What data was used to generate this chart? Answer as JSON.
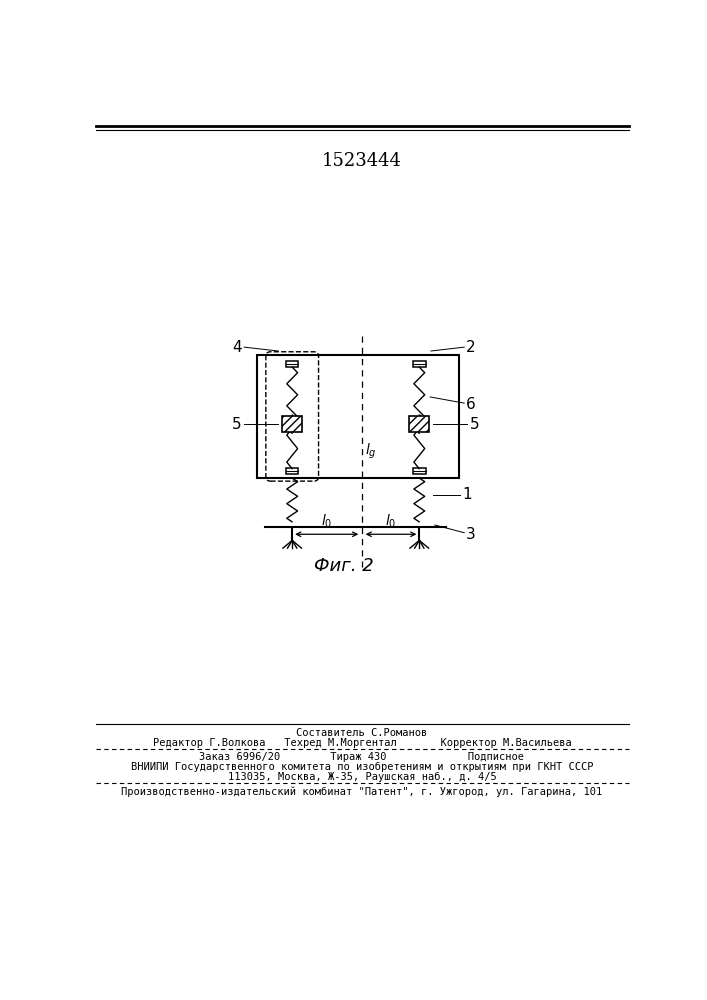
{
  "patent_number": "1523444",
  "fig_label": "Фиг. 2",
  "background_color": "#ffffff",
  "line_color": "#000000",
  "footer_lines": [
    "Составитель С.Романов",
    "Редактор Г.Волкова   Техред М.Моргентал       Корректор М.Васильева",
    "Заказ 6996/20        Тираж 430             Подписное",
    "ВНИИПИ Государственного комитета по изобретениям и открытиям при ГКНТ СССР",
    "113035, Москва, Ж-35, Раушская наб., д. 4/5",
    "Производственно-издательский комбинат \"Патент\", г. Ужгород, ул. Гагарина, 101"
  ]
}
